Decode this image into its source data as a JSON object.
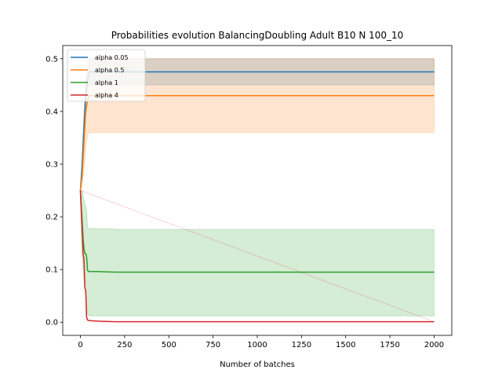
{
  "chart_data": {
    "type": "line",
    "title": "Probabilities evolution BalancingDoubling Adult B10 N 100_10",
    "xlabel": "Number of batches",
    "ylabel": "",
    "xlim": [
      -100,
      2100
    ],
    "ylim": [
      -0.025,
      0.525
    ],
    "xticks": [
      0,
      250,
      500,
      750,
      1000,
      1250,
      1500,
      1750,
      2000
    ],
    "yticks": [
      0.0,
      0.1,
      0.2,
      0.3,
      0.4,
      0.5
    ],
    "xtick_labels": [
      "0",
      "250",
      "500",
      "750",
      "1000",
      "1250",
      "1500",
      "1750",
      "2000"
    ],
    "ytick_labels": [
      "0.0",
      "0.1",
      "0.2",
      "0.3",
      "0.4",
      "0.5"
    ],
    "grid": false,
    "legend_position": "top-left",
    "series": [
      {
        "name": "alpha 0.05",
        "color": "#1f77b4",
        "x": [
          0,
          10,
          20,
          30,
          40,
          50,
          100,
          200,
          2000
        ],
        "y": [
          0.25,
          0.3,
          0.37,
          0.43,
          0.46,
          0.475,
          0.475,
          0.475,
          0.475
        ],
        "band_x": [
          0,
          10,
          20,
          30,
          40,
          50,
          2000
        ],
        "band_low": [
          0.25,
          0.29,
          0.36,
          0.41,
          0.44,
          0.45,
          0.45
        ],
        "band_high": [
          0.25,
          0.32,
          0.4,
          0.46,
          0.49,
          0.5,
          0.5
        ]
      },
      {
        "name": "alpha 0.5",
        "color": "#ff7f0e",
        "x": [
          0,
          10,
          20,
          30,
          40,
          50,
          100,
          200,
          2000
        ],
        "y": [
          0.25,
          0.28,
          0.34,
          0.4,
          0.42,
          0.43,
          0.43,
          0.43,
          0.43
        ],
        "band_x": [
          0,
          10,
          20,
          30,
          40,
          50,
          2000
        ],
        "band_low": [
          0.25,
          0.26,
          0.29,
          0.33,
          0.355,
          0.36,
          0.36
        ],
        "band_high": [
          0.25,
          0.31,
          0.39,
          0.45,
          0.48,
          0.5,
          0.5
        ]
      },
      {
        "name": "alpha 1",
        "color": "#2ca02c",
        "x": [
          0,
          10,
          15,
          20,
          25,
          30,
          35,
          40,
          50,
          100,
          200,
          2000
        ],
        "y": [
          0.25,
          0.19,
          0.16,
          0.14,
          0.13,
          0.13,
          0.125,
          0.098,
          0.096,
          0.096,
          0.095,
          0.095
        ],
        "band_x": [
          0,
          10,
          20,
          30,
          35,
          40,
          50,
          200,
          220,
          2000
        ],
        "band_low": [
          0.25,
          0.12,
          0.08,
          0.05,
          0.03,
          0.015,
          0.012,
          0.012,
          0.012,
          0.012
        ],
        "band_high": [
          0.25,
          0.25,
          0.23,
          0.22,
          0.215,
          0.18,
          0.178,
          0.177,
          0.176,
          0.176
        ]
      },
      {
        "name": "alpha 4",
        "color": "#d62728",
        "x": [
          0,
          10,
          15,
          20,
          25,
          30,
          35,
          40,
          50,
          100,
          200,
          2000
        ],
        "y": [
          0.25,
          0.17,
          0.13,
          0.12,
          0.065,
          0.06,
          0.01,
          0.004,
          0.003,
          0.002,
          0.001,
          0.001
        ],
        "band_x": [
          0,
          2000
        ],
        "band_low": [
          0.25,
          0.001
        ],
        "band_high": [
          0.25,
          0.001
        ]
      }
    ]
  }
}
